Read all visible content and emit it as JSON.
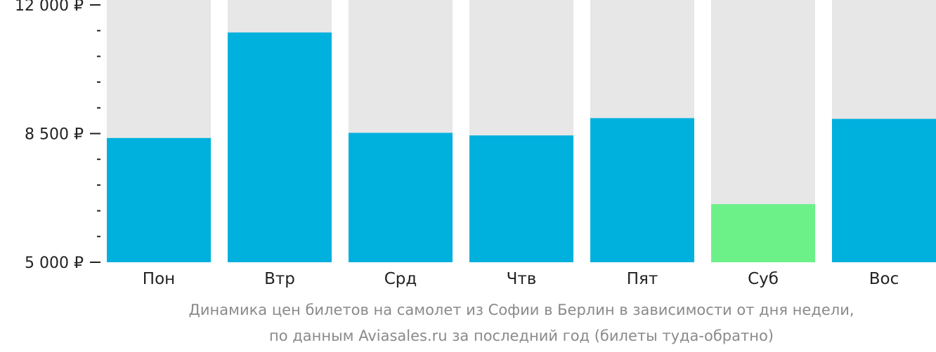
{
  "chart_data": {
    "type": "bar",
    "categories": [
      "Пон",
      "Втр",
      "Срд",
      "Чтв",
      "Пят",
      "Суб",
      "Вос"
    ],
    "values": [
      8380,
      11250,
      8520,
      8450,
      8920,
      6580,
      8900
    ],
    "highlight_index": 5,
    "ylim": [
      5000,
      12000
    ],
    "yticks": [
      {
        "value": 12000,
        "label": "12 000 ₽"
      },
      {
        "value": 8500,
        "label": "8 500 ₽"
      },
      {
        "value": 5000,
        "label": "5 000 ₽"
      }
    ],
    "minor_step": 700,
    "grid": false,
    "legend": "none",
    "colors": {
      "bar": "#00b0dd",
      "highlight": "#6cf088",
      "track": "#e7e7e7",
      "axis": "#222222",
      "caption": "#8a8a8a"
    }
  },
  "caption": {
    "line1": "Динамика цен билетов на самолет из Софии в Берлин в зависимости от дня недели,",
    "line2": "по данным Aviasales.ru за последний год (билеты туда-обратно)"
  }
}
